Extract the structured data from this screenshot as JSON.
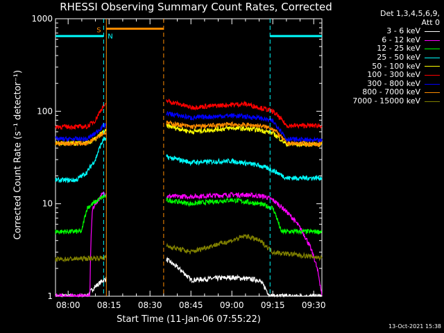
{
  "chart_data": {
    "type": "line",
    "title": "RHESSI Observing Summary Count Rates, Corrected",
    "xlabel": "Start Time (11-Jan-06 07:55:22)",
    "ylabel": "Corrected Count Rate (s⁻¹ detector⁻¹)",
    "yscale": "log",
    "xlim": [
      "07:55:22",
      "09:33:00"
    ],
    "ylim": [
      1,
      1000
    ],
    "x_ticks": [
      "08:00",
      "08:15",
      "08:30",
      "08:45",
      "09:00",
      "09:15",
      "09:30"
    ],
    "y_ticks": [
      "1",
      "10",
      "100",
      "1000"
    ],
    "legend_header": [
      "Det 1,3,4,5,6,9,",
      "Att 0"
    ],
    "legend_position": "right",
    "flags": {
      "saa_label": "S",
      "night_label": "N",
      "night_intervals": [
        [
          "07:55:22",
          "08:13:00"
        ],
        [
          "09:14:00",
          "09:33:00"
        ]
      ],
      "saa_interval": [
        "08:14:00",
        "08:35:00"
      ],
      "flag_color": "#00ffff",
      "saa_color": "#ff8c00"
    },
    "data_gap": [
      "08:14:00",
      "08:36:00"
    ],
    "series": [
      {
        "name": "3 - 6 keV",
        "color": "#ffffff",
        "points": [
          [
            "07:55:22",
            1
          ],
          [
            "08:07:00",
            1
          ],
          [
            "08:09:00",
            1.2
          ],
          [
            "08:13:00",
            1.5
          ],
          [
            "08:36:00",
            2.5
          ],
          [
            "08:45:00",
            1.5
          ],
          [
            "09:00:00",
            1.6
          ],
          [
            "09:10:00",
            1.5
          ],
          [
            "09:14:00",
            1
          ],
          [
            "09:33:00",
            1
          ]
        ]
      },
      {
        "name": "6 - 12 keV",
        "color": "#ff00ff",
        "points": [
          [
            "07:55:22",
            1
          ],
          [
            "08:08:00",
            1
          ],
          [
            "08:09:00",
            9
          ],
          [
            "08:13:00",
            13
          ],
          [
            "08:36:00",
            12
          ],
          [
            "08:45:00",
            12
          ],
          [
            "09:00:00",
            12.5
          ],
          [
            "09:05:00",
            12.5
          ],
          [
            "09:12:00",
            12
          ],
          [
            "09:15:00",
            11
          ],
          [
            "09:33:00",
            1
          ]
        ]
      },
      {
        "name": "12 - 25 keV",
        "color": "#00ff00",
        "points": [
          [
            "07:55:22",
            5
          ],
          [
            "08:05:00",
            5
          ],
          [
            "08:07:00",
            9
          ],
          [
            "08:13:00",
            12
          ],
          [
            "08:36:00",
            11
          ],
          [
            "08:45:00",
            10
          ],
          [
            "09:00:00",
            11
          ],
          [
            "09:10:00",
            10
          ],
          [
            "09:15:00",
            9
          ],
          [
            "09:18:00",
            5
          ],
          [
            "09:33:00",
            5
          ]
        ]
      },
      {
        "name": "25 - 50 keV",
        "color": "#00ffff",
        "points": [
          [
            "07:55:22",
            18
          ],
          [
            "08:03:00",
            18
          ],
          [
            "08:07:00",
            22
          ],
          [
            "08:10:00",
            30
          ],
          [
            "08:13:00",
            50
          ],
          [
            "08:36:00",
            32
          ],
          [
            "08:45:00",
            28
          ],
          [
            "09:00:00",
            29
          ],
          [
            "09:10:00",
            26
          ],
          [
            "09:15:00",
            23
          ],
          [
            "09:20:00",
            19
          ],
          [
            "09:33:00",
            19
          ]
        ]
      },
      {
        "name": "50 - 100 keV",
        "color": "#ffff00",
        "points": [
          [
            "07:55:22",
            45
          ],
          [
            "08:07:00",
            45
          ],
          [
            "08:10:00",
            50
          ],
          [
            "08:13:00",
            60
          ],
          [
            "08:36:00",
            70
          ],
          [
            "08:45:00",
            60
          ],
          [
            "09:00:00",
            66
          ],
          [
            "09:10:00",
            63
          ],
          [
            "09:15:00",
            58
          ],
          [
            "09:20:00",
            44
          ],
          [
            "09:33:00",
            44
          ]
        ]
      },
      {
        "name": "100 - 300 keV",
        "color": "#ff0000",
        "points": [
          [
            "07:55:22",
            68
          ],
          [
            "08:07:00",
            68
          ],
          [
            "08:10:00",
            80
          ],
          [
            "08:13:00",
            115
          ],
          [
            "08:36:00",
            130
          ],
          [
            "08:45:00",
            110
          ],
          [
            "09:00:00",
            118
          ],
          [
            "09:05:00",
            120
          ],
          [
            "09:10:00",
            110
          ],
          [
            "09:15:00",
            100
          ],
          [
            "09:20:00",
            70
          ],
          [
            "09:33:00",
            70
          ]
        ]
      },
      {
        "name": "300 - 800 keV",
        "color": "#0000ff",
        "points": [
          [
            "07:55:22",
            50
          ],
          [
            "08:07:00",
            50
          ],
          [
            "08:10:00",
            58
          ],
          [
            "08:13:00",
            70
          ],
          [
            "08:36:00",
            95
          ],
          [
            "08:45:00",
            85
          ],
          [
            "09:00:00",
            90
          ],
          [
            "09:10:00",
            85
          ],
          [
            "09:15:00",
            78
          ],
          [
            "09:20:00",
            50
          ],
          [
            "09:33:00",
            48
          ]
        ]
      },
      {
        "name": "800 - 7000 keV",
        "color": "#ff8c00",
        "points": [
          [
            "07:55:22",
            45
          ],
          [
            "08:07:00",
            45
          ],
          [
            "08:10:00",
            52
          ],
          [
            "08:13:00",
            58
          ],
          [
            "08:36:00",
            75
          ],
          [
            "08:45:00",
            68
          ],
          [
            "09:00:00",
            72
          ],
          [
            "09:10:00",
            70
          ],
          [
            "09:15:00",
            65
          ],
          [
            "09:20:00",
            45
          ],
          [
            "09:33:00",
            44
          ]
        ]
      },
      {
        "name": "7000 - 15000 keV",
        "color": "#808000",
        "points": [
          [
            "07:55:22",
            2.5
          ],
          [
            "08:13:00",
            2.6
          ],
          [
            "08:36:00",
            3.5
          ],
          [
            "08:45:00",
            3
          ],
          [
            "09:00:00",
            4
          ],
          [
            "09:05:00",
            4.5
          ],
          [
            "09:10:00",
            4
          ],
          [
            "09:15:00",
            3
          ],
          [
            "09:33:00",
            2.6
          ]
        ]
      }
    ]
  },
  "footer": {
    "timestamp": "13-Oct-2021 15:38"
  }
}
